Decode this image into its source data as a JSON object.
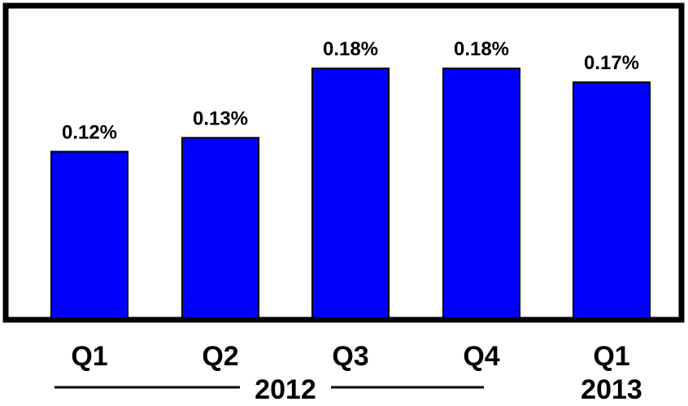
{
  "chart_data": {
    "type": "bar",
    "categories": [
      "Q1",
      "Q2",
      "Q3",
      "Q4",
      "Q1"
    ],
    "values": [
      0.12,
      0.13,
      0.18,
      0.18,
      0.17
    ],
    "value_labels": [
      "0.12%",
      "0.13%",
      "0.18%",
      "0.18%",
      "0.17%"
    ],
    "year_groups": [
      {
        "label": "2012",
        "categories": [
          0,
          1,
          2,
          3
        ]
      },
      {
        "label": "2013",
        "categories": [
          4
        ]
      }
    ],
    "title": "",
    "xlabel": "",
    "ylabel": "",
    "ylim": [
      0,
      0.2
    ],
    "grid": false,
    "bar_color": "#0000ff",
    "bar_edge_color": "#000000",
    "frame_color": "#000000"
  }
}
